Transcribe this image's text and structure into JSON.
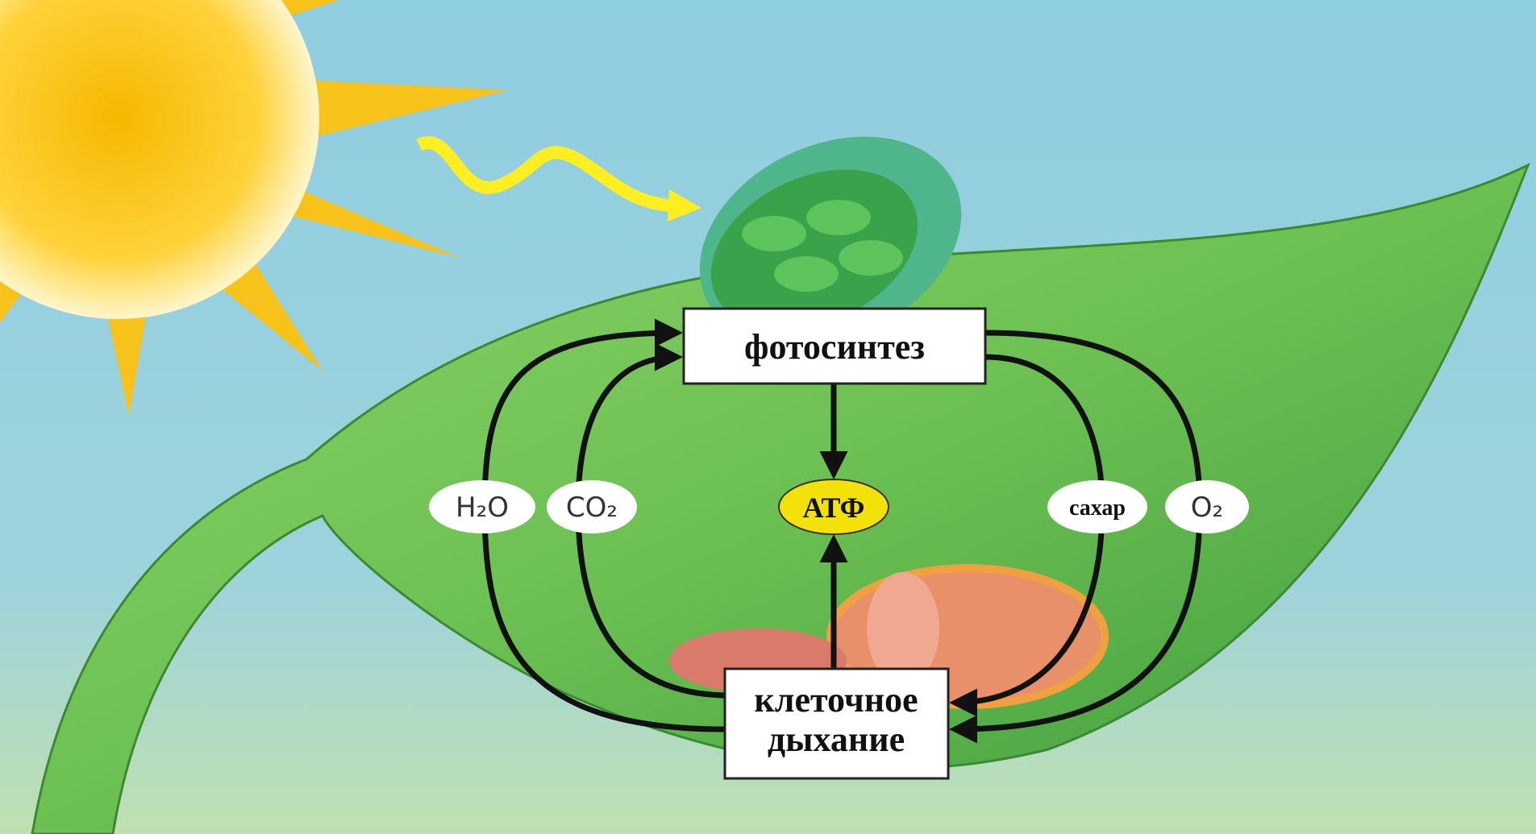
{
  "nodes": {
    "photosynthesis": "фотосинтез",
    "respiration": [
      "клеточное",
      "дыхание"
    ],
    "atp": "АТФ"
  },
  "labels": [
    "H₂O",
    "CO₂",
    "сахар",
    "O₂"
  ]
}
